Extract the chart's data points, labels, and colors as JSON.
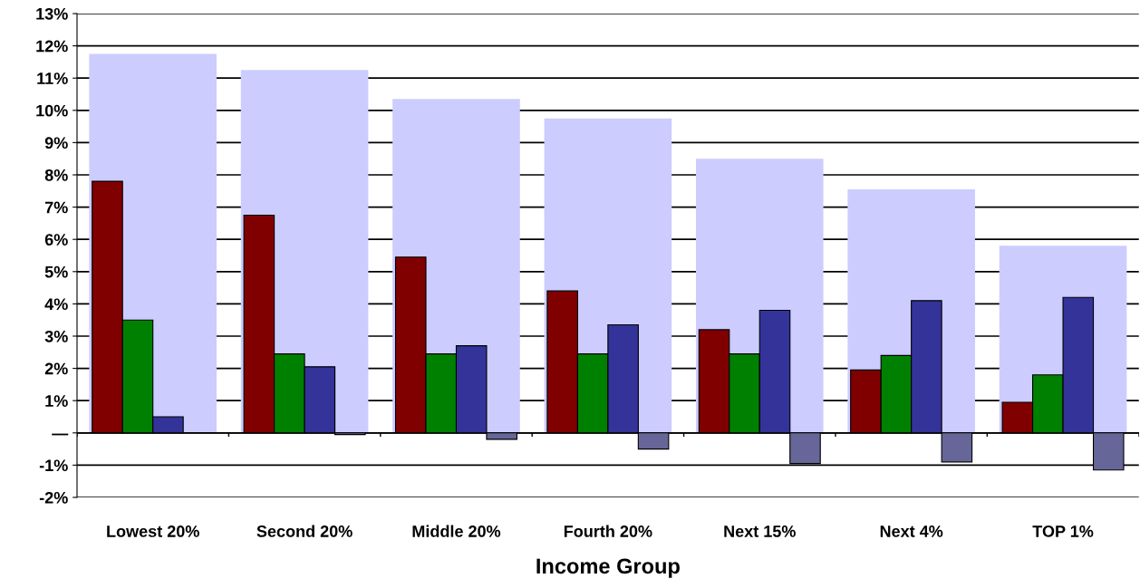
{
  "chart_data": {
    "type": "bar",
    "xlabel": "Income Group",
    "categories": [
      "Lowest 20%",
      "Second 20%",
      "Middle 20%",
      "Fourth 20%",
      "Next 15%",
      "Next 4%",
      "TOP 1%"
    ],
    "series": [
      {
        "color": "#ccccff",
        "values": [
          11.75,
          11.25,
          10.35,
          9.75,
          8.5,
          7.55,
          5.8
        ]
      },
      {
        "color": "#800000",
        "values": [
          7.8,
          6.75,
          5.45,
          4.4,
          3.2,
          1.95,
          0.95
        ]
      },
      {
        "color": "#008000",
        "values": [
          3.5,
          2.45,
          2.45,
          2.45,
          2.45,
          2.4,
          1.8
        ]
      },
      {
        "color": "#333399",
        "values": [
          0.5,
          2.05,
          2.7,
          3.35,
          3.8,
          4.1,
          4.2
        ]
      },
      {
        "color": "#666699",
        "values": [
          null,
          -0.05,
          -0.2,
          -0.5,
          -0.95,
          -0.9,
          -1.15
        ]
      }
    ],
    "ylim": [
      -2,
      13
    ],
    "yticks": [
      {
        "value": -2,
        "label": "-2%"
      },
      {
        "value": -1,
        "label": "-1%"
      },
      {
        "value": 0,
        "label": "—"
      },
      {
        "value": 1,
        "label": "1%"
      },
      {
        "value": 2,
        "label": "2%"
      },
      {
        "value": 3,
        "label": "3%"
      },
      {
        "value": 4,
        "label": "4%"
      },
      {
        "value": 5,
        "label": "5%"
      },
      {
        "value": 6,
        "label": "6%"
      },
      {
        "value": 7,
        "label": "7%"
      },
      {
        "value": 8,
        "label": "8%"
      },
      {
        "value": 9,
        "label": "9%"
      },
      {
        "value": 10,
        "label": "10%"
      },
      {
        "value": 11,
        "label": "11%"
      },
      {
        "value": 12,
        "label": "12%"
      },
      {
        "value": 13,
        "label": "13%"
      }
    ],
    "grid": "y"
  }
}
